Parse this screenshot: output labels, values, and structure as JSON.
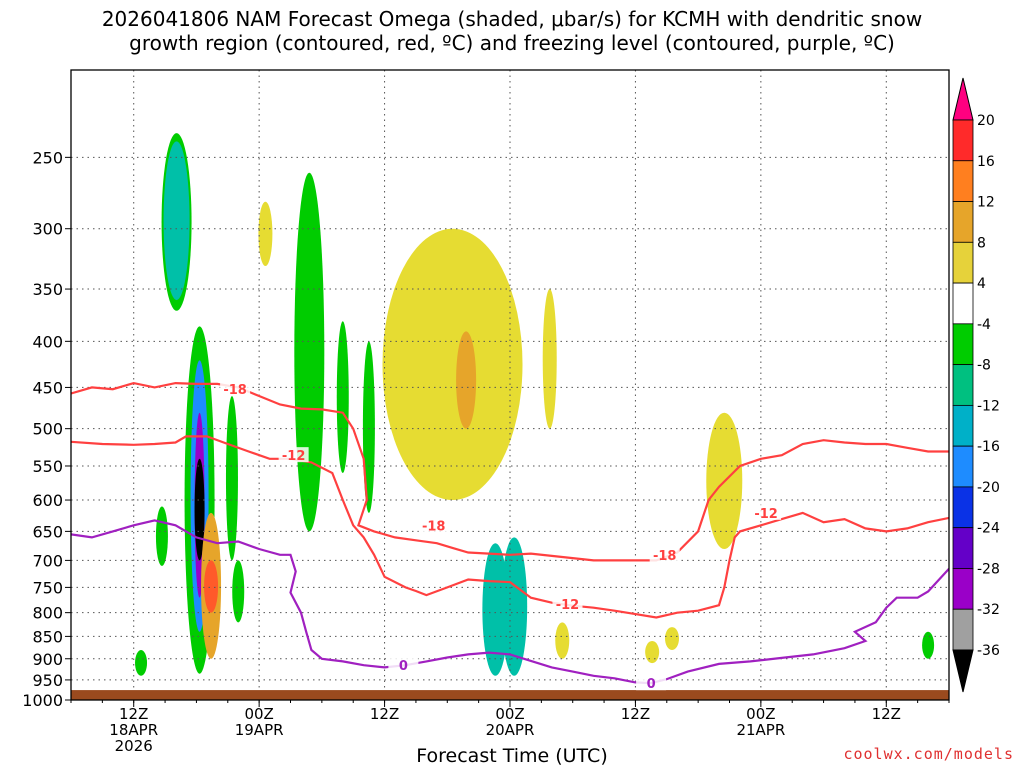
{
  "title": {
    "line1": "2026041806 NAM Forecast Omega (shaded, μbar/s) for KCMH with dendritic snow",
    "line2": "growth region (contoured, red, ºC) and freezing level (contoured, purple, ºC)"
  },
  "xlabel": "Forecast Time (UTC)",
  "credit": "coolwx.com/models",
  "chart_data": {
    "type": "heatmap",
    "y_axis": {
      "label": "",
      "ticks": [
        250,
        300,
        350,
        400,
        450,
        500,
        550,
        600,
        650,
        700,
        750,
        800,
        850,
        900,
        950,
        1000
      ],
      "range": [
        1000,
        200
      ],
      "scale": "log-pressure"
    },
    "x_axis": {
      "ticks": [
        {
          "hours": 6,
          "lines": [
            "12Z",
            "18APR",
            "2026"
          ]
        },
        {
          "hours": 18,
          "lines": [
            "00Z",
            "19APR"
          ]
        },
        {
          "hours": 30,
          "lines": [
            "12Z"
          ]
        },
        {
          "hours": 42,
          "lines": [
            "00Z",
            "20APR"
          ]
        },
        {
          "hours": 54,
          "lines": [
            "12Z"
          ]
        },
        {
          "hours": 66,
          "lines": [
            "00Z",
            "21APR"
          ]
        },
        {
          "hours": 78,
          "lines": [
            "12Z"
          ]
        }
      ],
      "range": [
        0,
        84
      ],
      "grid": true
    },
    "colorbar": {
      "labels": [
        "20",
        "16",
        "12",
        "8",
        "4",
        "-4",
        "-8",
        "-12",
        "-16",
        "-20",
        "-24",
        "-28",
        "-32",
        "-36"
      ],
      "colors": [
        "#ff0080",
        "#ff2a2a",
        "#ff7f1f",
        "#e6a52a",
        "#e6d23a",
        "#ffffff",
        "#00cc00",
        "#00c080",
        "#00b0c8",
        "#1e8cff",
        "#0a32e6",
        "#6400c8",
        "#9a00c8",
        "#a0a0a0",
        "#000000"
      ]
    },
    "omega_regions": [
      {
        "x": 10.1,
        "p": [
          235,
          370
        ],
        "level": -8
      },
      {
        "x": 10.1,
        "p": [
          240,
          360
        ],
        "level": -12
      },
      {
        "x": 12.3,
        "p": [
          385,
          935
        ],
        "level": -8
      },
      {
        "x": 12.3,
        "p": [
          420,
          840
        ],
        "level": -16
      },
      {
        "x": 12.3,
        "p": [
          480,
          770
        ],
        "level": -28
      },
      {
        "x": 12.3,
        "p": [
          540,
          700
        ],
        "level": -36
      },
      {
        "x": 13.4,
        "p": [
          620,
          900
        ],
        "level": 8
      },
      {
        "x": 13.4,
        "p": [
          700,
          800
        ],
        "level": 16
      },
      {
        "x": 22.8,
        "p": [
          260,
          650
        ],
        "level": -8
      },
      {
        "x": 40.6,
        "p": [
          670,
          940
        ],
        "level": -12
      },
      {
        "x": 42.4,
        "p": [
          660,
          940
        ],
        "level": -12
      },
      {
        "x": 36.5,
        "p": [
          300,
          600
        ],
        "level": 4
      },
      {
        "x": 37.8,
        "p": [
          390,
          500
        ],
        "level": 8
      },
      {
        "x": 62.5,
        "p": [
          480,
          680
        ],
        "level": 4
      }
    ],
    "contours": [
      {
        "name": "dgz -18",
        "color": "#ff4040",
        "value": -18,
        "label_positions": [
          [
            15.7,
            452
          ],
          [
            34.7,
            640
          ],
          [
            56.8,
            690
          ]
        ]
      },
      {
        "name": "dgz -12",
        "color": "#ff4040",
        "value": -12,
        "label_positions": [
          [
            21.3,
            535
          ],
          [
            47.5,
            783
          ],
          [
            66.5,
            620
          ]
        ]
      },
      {
        "name": "freezing level 0",
        "color": "#a020c0",
        "value": 0,
        "label_positions": [
          [
            31.8,
            915
          ],
          [
            55.5,
            958
          ]
        ]
      }
    ]
  }
}
